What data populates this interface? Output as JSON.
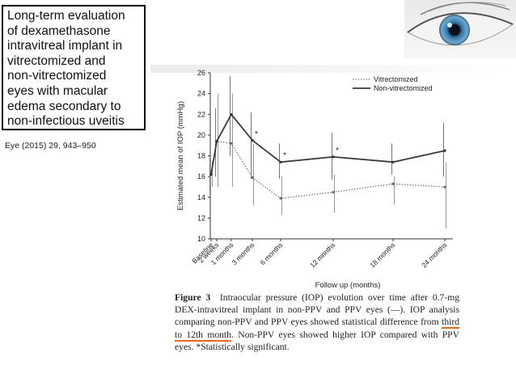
{
  "title_lines": [
    "Long-term evaluation",
    "of dexamethasone",
    "intravitreal implant in",
    "vitrectomized and",
    "non-vitrectomized",
    "eyes with macular",
    "edema secondary to",
    "non-infectious uveitis"
  ],
  "citation": "Eye (2015) 29, 943–950",
  "caption": {
    "figure_label": "Figure 3",
    "part1": "Intraocular pressure (IOP) evolution over time after 0.7-mg DEX-intravitreal implant in non-PPV and PPV eyes (—). IOP analysis comparing non-PPV and PPV eyes showed statistical difference from",
    "highlight": "third to 12th month",
    "part2": ". Non-PPV eyes showed higher IOP compared with PPV eyes. *Statistically significant."
  },
  "colors": {
    "non_vitrectomized": "#3a3a3a",
    "vitrectomized": "#777777",
    "highlight_underline": "#e86a1a"
  },
  "chart_data": {
    "type": "line",
    "xlabel": "Follow up (months)",
    "ylabel": "Estimated mean of IOP (mmHg)",
    "ylim": [
      10,
      26
    ],
    "yticks": [
      10,
      12,
      14,
      16,
      18,
      20,
      22,
      24,
      26
    ],
    "x": [
      0,
      0.5,
      1,
      3,
      6,
      12,
      18,
      24
    ],
    "xtick_labels": [
      "Baseline",
      "2 weeks",
      "1 months",
      "3 months",
      "6 months",
      "12 months",
      "18 months",
      "24 months"
    ],
    "legend_position": "top-right",
    "series": [
      {
        "name": "Vitrectomized",
        "style": "dotted",
        "values": [
          16.2,
          19.4,
          19.2,
          15.9,
          13.9,
          14.5,
          15.3,
          15.0
        ],
        "err_low": [
          15.0,
          15.0,
          15.0,
          13.2,
          12.3,
          12.5,
          13.3,
          11.0
        ],
        "err_high": [
          17.5,
          24.0,
          24.0,
          19.2,
          16.0,
          16.2,
          16.0,
          17.4
        ]
      },
      {
        "name": "Non-vitrectomized",
        "style": "solid",
        "values": [
          16.2,
          19.4,
          22.0,
          19.5,
          17.4,
          17.9,
          17.4,
          18.5
        ],
        "err_low": [
          14.5,
          16.0,
          18.0,
          15.8,
          15.8,
          15.7,
          16.2,
          16.0
        ],
        "err_high": [
          17.8,
          22.6,
          25.7,
          22.2,
          19.2,
          20.2,
          19.2,
          21.2
        ]
      }
    ],
    "significance_markers": [
      {
        "x": 3,
        "label": "*"
      },
      {
        "x": 6,
        "label": "*"
      },
      {
        "x": 12,
        "label": "*"
      }
    ]
  }
}
